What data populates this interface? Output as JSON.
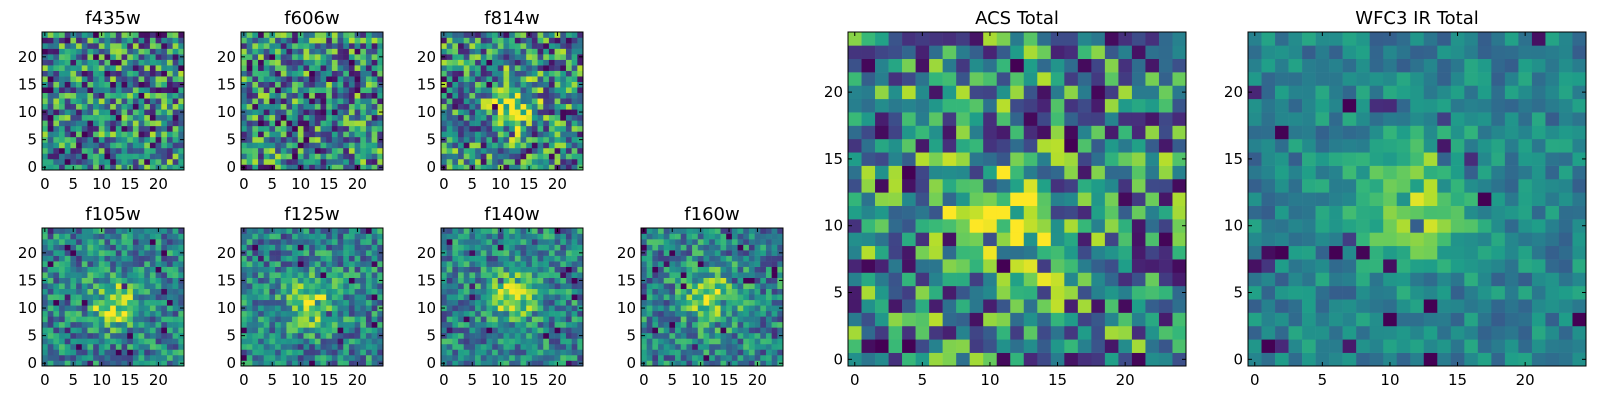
{
  "chart_data": [
    {
      "type": "heatmap",
      "title": "f435w",
      "colormap": "viridis",
      "x_ticks": [
        "0",
        "5",
        "10",
        "15",
        "20"
      ],
      "y_ticks": [
        "0",
        "5",
        "10",
        "15",
        "20"
      ],
      "xlim": [
        -0.5,
        24.5
      ],
      "ylim": [
        -0.5,
        24.5
      ],
      "peak": "none",
      "noise_level": "high"
    },
    {
      "type": "heatmap",
      "title": "f606w",
      "colormap": "viridis",
      "x_ticks": [
        "0",
        "5",
        "10",
        "15",
        "20"
      ],
      "y_ticks": [
        "0",
        "5",
        "10",
        "15",
        "20"
      ],
      "xlim": [
        -0.5,
        24.5
      ],
      "ylim": [
        -0.5,
        24.5
      ],
      "peak": "none",
      "noise_level": "high"
    },
    {
      "type": "heatmap",
      "title": "f814w",
      "colormap": "viridis",
      "x_ticks": [
        "0",
        "5",
        "10",
        "15",
        "20"
      ],
      "y_ticks": [
        "0",
        "5",
        "10",
        "15",
        "20"
      ],
      "xlim": [
        -0.5,
        24.5
      ],
      "ylim": [
        -0.5,
        24.5
      ],
      "peak": [
        12,
        11
      ],
      "noise_level": "high"
    },
    {
      "type": "heatmap",
      "title": "f105w",
      "colormap": "viridis",
      "x_ticks": [
        "0",
        "5",
        "10",
        "15",
        "20"
      ],
      "y_ticks": [
        "0",
        "5",
        "10",
        "15",
        "20"
      ],
      "xlim": [
        -0.5,
        24.5
      ],
      "ylim": [
        -0.5,
        24.5
      ],
      "peak": [
        12,
        11
      ],
      "noise_level": "medium"
    },
    {
      "type": "heatmap",
      "title": "f125w",
      "colormap": "viridis",
      "x_ticks": [
        "0",
        "5",
        "10",
        "15",
        "20"
      ],
      "y_ticks": [
        "0",
        "5",
        "10",
        "15",
        "20"
      ],
      "xlim": [
        -0.5,
        24.5
      ],
      "ylim": [
        -0.5,
        24.5
      ],
      "peak": [
        12,
        11
      ],
      "noise_level": "medium"
    },
    {
      "type": "heatmap",
      "title": "f140w",
      "colormap": "viridis",
      "x_ticks": [
        "0",
        "5",
        "10",
        "15",
        "20"
      ],
      "y_ticks": [
        "0",
        "5",
        "10",
        "15",
        "20"
      ],
      "xlim": [
        -0.5,
        24.5
      ],
      "ylim": [
        -0.5,
        24.5
      ],
      "peak": [
        12,
        12
      ],
      "noise_level": "medium"
    },
    {
      "type": "heatmap",
      "title": "f160w",
      "colormap": "viridis",
      "x_ticks": [
        "0",
        "5",
        "10",
        "15",
        "20"
      ],
      "y_ticks": [
        "0",
        "5",
        "10",
        "15",
        "20"
      ],
      "xlim": [
        -0.5,
        24.5
      ],
      "ylim": [
        -0.5,
        24.5
      ],
      "peak": [
        12,
        12
      ],
      "noise_level": "medium"
    },
    {
      "type": "heatmap",
      "title": "ACS Total",
      "colormap": "viridis",
      "x_ticks": [
        "0",
        "5",
        "10",
        "15",
        "20"
      ],
      "y_ticks": [
        "0",
        "5",
        "10",
        "15",
        "20"
      ],
      "xlim": [
        -0.5,
        24.5
      ],
      "ylim": [
        -0.5,
        24.5
      ],
      "peak": [
        11,
        10
      ],
      "noise_level": "high"
    },
    {
      "type": "heatmap",
      "title": "WFC3 IR Total",
      "colormap": "viridis",
      "x_ticks": [
        "0",
        "5",
        "10",
        "15",
        "20"
      ],
      "y_ticks": [
        "0",
        "5",
        "10",
        "15",
        "20"
      ],
      "xlim": [
        -0.5,
        24.5
      ],
      "ylim": [
        -0.5,
        24.5
      ],
      "peak": [
        12,
        12
      ],
      "noise_level": "low"
    }
  ]
}
